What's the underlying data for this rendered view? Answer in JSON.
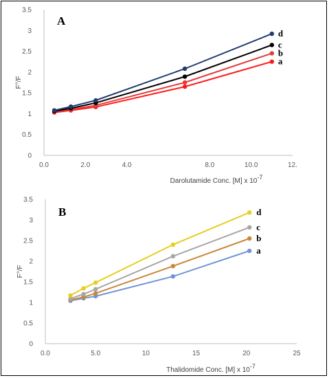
{
  "chart_data": [
    {
      "type": "line",
      "panel_label": "A",
      "xlabel": "Darolutamide Conc. [M] x 10",
      "xlabel_exp": "-7",
      "ylabel": "F°/F",
      "xlim": [
        0,
        12
      ],
      "ylim": [
        0,
        3.5
      ],
      "x_ticks": [
        "0.0",
        "2.0",
        "4.0",
        "",
        "8.0",
        "10.0",
        "12."
      ],
      "y_ticks": [
        "0",
        "0.5",
        "1",
        "1.5",
        "2",
        "2.5",
        "3",
        "3.5"
      ],
      "grid": false,
      "series": [
        {
          "name": "a",
          "color": "#ff1a1a",
          "x": [
            0.5,
            1.3,
            2.5,
            6.8,
            11.0
          ],
          "y": [
            1.03,
            1.08,
            1.16,
            1.65,
            2.25
          ]
        },
        {
          "name": "b",
          "color": "#e33a3a",
          "x": [
            0.5,
            1.3,
            2.5,
            6.8,
            11.0
          ],
          "y": [
            1.05,
            1.1,
            1.2,
            1.75,
            2.45
          ]
        },
        {
          "name": "c",
          "color": "#000000",
          "x": [
            0.5,
            1.3,
            2.5,
            6.8,
            11.0
          ],
          "y": [
            1.06,
            1.13,
            1.26,
            1.89,
            2.65
          ]
        },
        {
          "name": "d",
          "color": "#1f3a6e",
          "x": [
            0.5,
            1.3,
            2.5,
            6.8,
            11.0
          ],
          "y": [
            1.08,
            1.17,
            1.32,
            2.08,
            2.92
          ]
        }
      ]
    },
    {
      "type": "line",
      "panel_label": "B",
      "xlabel": "Thalidomide Conc. [M] x 10",
      "xlabel_exp": "-7",
      "ylabel": "F°/F",
      "xlim": [
        0,
        25
      ],
      "ylim": [
        0,
        3.5
      ],
      "x_ticks": [
        "0.0",
        "5.0",
        "10",
        "15",
        "20",
        "25"
      ],
      "y_ticks": [
        "0",
        "0.5",
        "1",
        "1.5",
        "2",
        "2.5",
        "3",
        "3.5"
      ],
      "grid": false,
      "series": [
        {
          "name": "a",
          "color": "#6f94d8",
          "x": [
            2.5,
            3.8,
            5.0,
            12.7,
            20.3
          ],
          "y": [
            1.04,
            1.1,
            1.15,
            1.63,
            2.25
          ]
        },
        {
          "name": "b",
          "color": "#c9873a",
          "x": [
            2.5,
            3.8,
            5.0,
            12.7,
            20.3
          ],
          "y": [
            1.06,
            1.13,
            1.22,
            1.88,
            2.55
          ]
        },
        {
          "name": "c",
          "color": "#a6a6a6",
          "x": [
            2.5,
            3.8,
            5.0,
            12.7,
            20.3
          ],
          "y": [
            1.09,
            1.2,
            1.32,
            2.12,
            2.82
          ]
        },
        {
          "name": "d",
          "color": "#e6cf1f",
          "x": [
            2.5,
            3.8,
            5.0,
            12.7,
            20.3
          ],
          "y": [
            1.17,
            1.34,
            1.48,
            2.4,
            3.18
          ]
        }
      ]
    }
  ]
}
